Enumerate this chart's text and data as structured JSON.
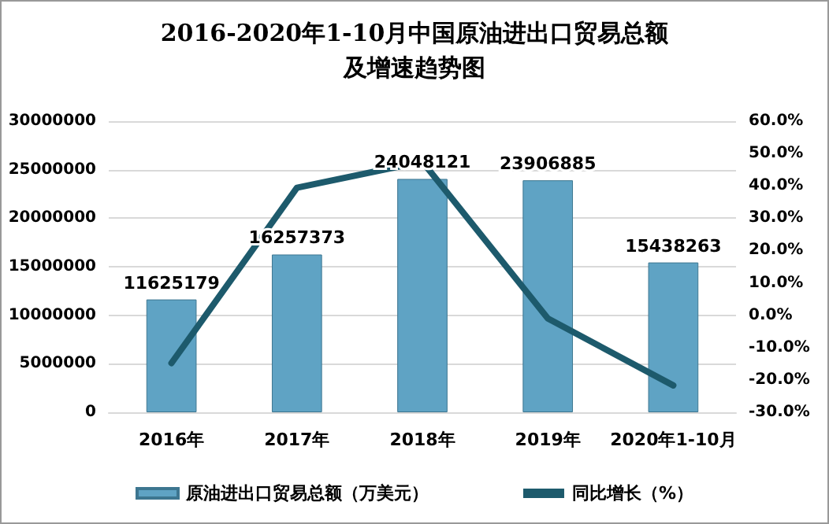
{
  "chart_data": {
    "type": "bar",
    "title": "2016-2020年1-10月中国原油进出口贸易总额及增速趋势图",
    "categories": [
      "2016年",
      "2017年",
      "2018年",
      "2019年",
      "2020年1-10月"
    ],
    "series": [
      {
        "name": "原油进出口贸易总额（万美元）",
        "color": "#5fa3c4",
        "values": [
          11625179,
          16257373,
          24048121,
          23906885,
          15438263
        ],
        "data_labels": true
      },
      {
        "name": "同比增长（%）",
        "type": "line",
        "axis": "y2",
        "color": "#1d5a6c",
        "values": [
          -14.8,
          39.4,
          47.5,
          -1.0,
          -21.7
        ],
        "marker": "none"
      }
    ],
    "ylim": [
      0,
      30000000
    ],
    "yticks": [
      0,
      5000000,
      10000000,
      15000000,
      20000000,
      25000000,
      30000000
    ],
    "y2lim": [
      -30,
      60
    ],
    "y2ticks": [
      {
        "value": -30,
        "label": "-30.0%"
      },
      {
        "value": -20,
        "label": "-20.0%"
      },
      {
        "value": -10,
        "label": "-10.0%"
      },
      {
        "value": 0,
        "label": "0.0%"
      },
      {
        "value": 10,
        "label": "10.0%"
      },
      {
        "value": 20,
        "label": "20.0%"
      },
      {
        "value": 30,
        "label": "30.0%"
      },
      {
        "value": 40,
        "label": "40.0%"
      },
      {
        "value": 50,
        "label": "50.0%"
      },
      {
        "value": 60,
        "label": "60.0%"
      }
    ],
    "grid": "y",
    "legend": "bottom"
  }
}
